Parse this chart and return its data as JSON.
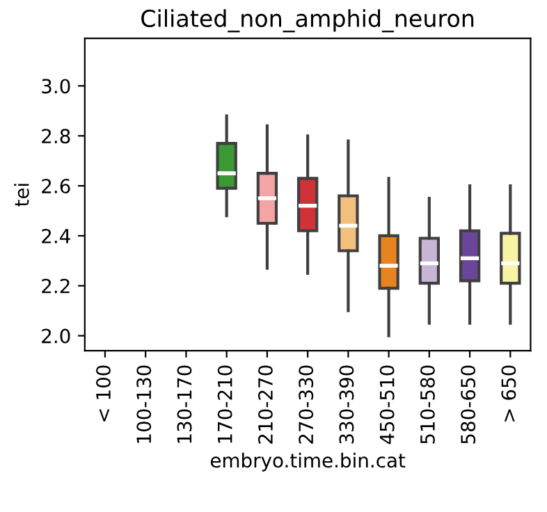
{
  "chart_data": {
    "type": "box",
    "title": "Ciliated_non_amphid_neuron",
    "xlabel": "embryo.time.bin.cat",
    "ylabel": "tei",
    "categories": [
      "< 100",
      "100-130",
      "130-170",
      "170-210",
      "210-270",
      "270-330",
      "330-390",
      "450-510",
      "510-580",
      "580-650",
      "> 650"
    ],
    "colors": [
      "#cccccc",
      "#cccccc",
      "#cccccc",
      "#3a9a34",
      "#f4a4a3",
      "#d1323a",
      "#f1c07e",
      "#e8841f",
      "#c8b5d6",
      "#6a459a",
      "#f7f5a5"
    ],
    "boxes": [
      null,
      null,
      null,
      {
        "low": 2.48,
        "q1": 2.59,
        "median": 2.65,
        "q3": 2.77,
        "high": 2.88
      },
      {
        "low": 2.27,
        "q1": 2.45,
        "median": 2.55,
        "q3": 2.65,
        "high": 2.84
      },
      {
        "low": 2.25,
        "q1": 2.42,
        "median": 2.52,
        "q3": 2.63,
        "high": 2.8
      },
      {
        "low": 2.1,
        "q1": 2.34,
        "median": 2.44,
        "q3": 2.56,
        "high": 2.78
      },
      {
        "low": 2.0,
        "q1": 2.19,
        "median": 2.28,
        "q3": 2.4,
        "high": 2.63
      },
      {
        "low": 2.05,
        "q1": 2.21,
        "median": 2.29,
        "q3": 2.39,
        "high": 2.55
      },
      {
        "low": 2.05,
        "q1": 2.22,
        "median": 2.31,
        "q3": 2.42,
        "high": 2.6
      },
      {
        "low": 2.05,
        "q1": 2.21,
        "median": 2.29,
        "q3": 2.41,
        "high": 2.6
      }
    ],
    "ylim": [
      1.94,
      3.19
    ],
    "yticks": [
      {
        "value": 2,
        "label": "2.0"
      },
      2.2,
      2.4,
      2.6,
      2.8,
      {
        "value": 3,
        "label": "3.0"
      }
    ],
    "grid": false,
    "legend": false
  }
}
